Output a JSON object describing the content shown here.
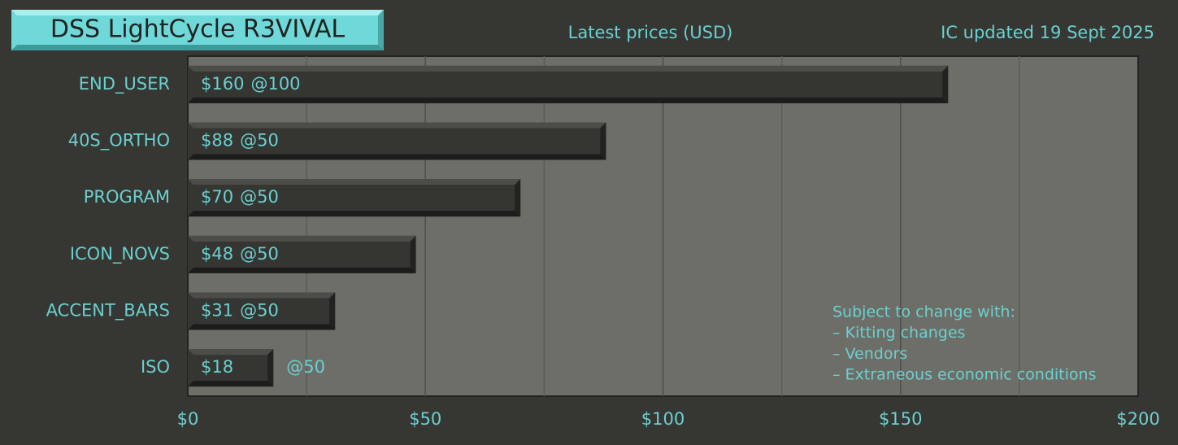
{
  "chart_data": {
    "type": "bar",
    "orientation": "horizontal",
    "title": "DSS LightCycle R3VIVAL",
    "subtitle": "Latest prices (USD)",
    "update_note": "IC updated 19 Sept 2025",
    "categories": [
      "END_USER",
      "40S_ORTHO",
      "PROGRAM",
      "ICON_NOVS",
      "ACCENT_BARS",
      "ISO"
    ],
    "values": [
      160,
      88,
      70,
      48,
      31,
      18
    ],
    "value_labels": [
      "$160",
      "$88",
      "$70",
      "$48",
      "$31",
      "$18"
    ],
    "quantity_labels": [
      "@100",
      "@50",
      "@50",
      "@50",
      "@50",
      "@50"
    ],
    "color": "#353532",
    "xlim": [
      0,
      200
    ],
    "xticks": [
      {
        "value": 0,
        "label": "$0"
      },
      {
        "value": 50,
        "label": "$50"
      },
      {
        "value": 100,
        "label": "$100"
      },
      {
        "value": 150,
        "label": "$150"
      },
      {
        "value": 200,
        "label": "$200"
      }
    ],
    "minor_gridlines": [
      25,
      75,
      125,
      175
    ],
    "grid": true,
    "annotation": [
      "Subject to change with:",
      "– Kitting changes",
      "– Vendors",
      "– Extraneous economic conditions"
    ]
  }
}
